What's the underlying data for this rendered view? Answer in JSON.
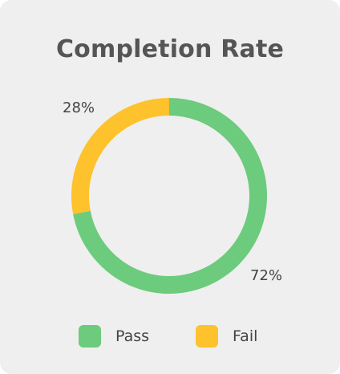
{
  "chart_data": {
    "type": "pie",
    "title": "Completion Rate",
    "donut": true,
    "categories": [
      "Pass",
      "Fail"
    ],
    "values": [
      72,
      28
    ],
    "value_labels": [
      "72%",
      "28%"
    ],
    "colors": [
      "#6ccb7c",
      "#fdc22c"
    ],
    "legend": "bottom"
  }
}
